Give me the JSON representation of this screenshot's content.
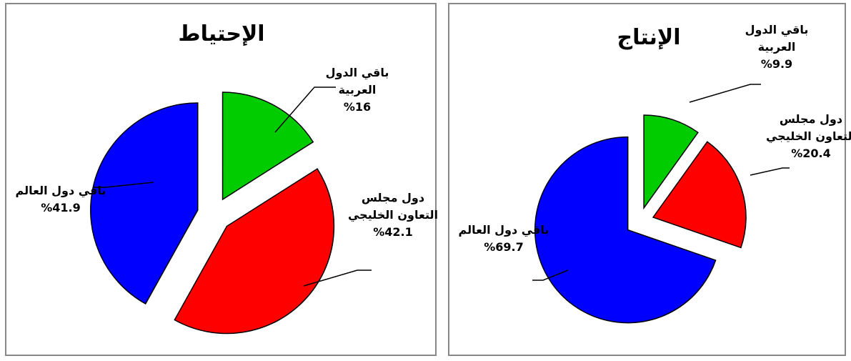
{
  "chart_data": [
    {
      "type": "pie",
      "title": "الإحتياط",
      "categories": [
        "باقي الدول العربية",
        "دول مجلس التعاون الخليجي",
        "باقي دول العالم"
      ],
      "values": [
        16,
        42.1,
        41.9
      ],
      "value_labels": [
        "%16",
        "%42.1",
        "%41.9"
      ],
      "colors": [
        "#00cc00",
        "#ff0000",
        "#0000ff"
      ]
    },
    {
      "type": "pie",
      "title": "الإنتاج",
      "categories": [
        "باقي الدول العربية",
        "دول مجلس التعاون الخليجي",
        "باقي دول العالم"
      ],
      "values": [
        9.9,
        20.4,
        69.7
      ],
      "value_labels": [
        "%9.9",
        "%20.4",
        "%69.7"
      ],
      "colors": [
        "#00cc00",
        "#ff0000",
        "#0000ff"
      ]
    }
  ]
}
